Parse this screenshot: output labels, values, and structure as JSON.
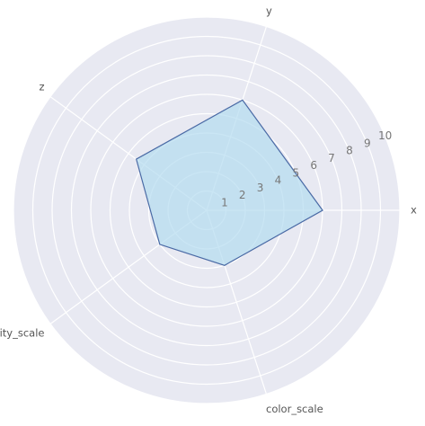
{
  "chart_data": {
    "type": "radar",
    "title": "",
    "categories": [
      "x",
      "y",
      "z",
      "clarity_scale",
      "color_scale"
    ],
    "series": [
      {
        "values": [
          6.0,
          6.0,
          4.5,
          3.0,
          3.0
        ]
      }
    ],
    "rlim": [
      0,
      10
    ],
    "radial_ticks": [
      1,
      2,
      3,
      4,
      5,
      6,
      7,
      8,
      9,
      10
    ],
    "grid": true,
    "colors": {
      "background": "#e8e9f2",
      "grid": "#ffffff",
      "fill": "#b3dcef",
      "line": "#4a6aa5",
      "label": "#555555",
      "tick_label": "#777777"
    }
  }
}
